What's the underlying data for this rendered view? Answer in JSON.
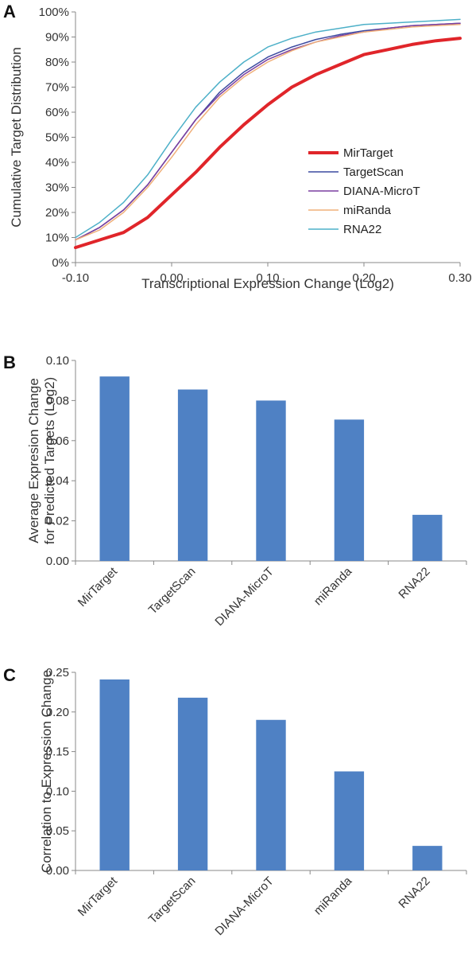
{
  "figure": {
    "panels": [
      "A",
      "B",
      "C"
    ]
  },
  "chart_data": [
    {
      "type": "line",
      "panel": "A",
      "xlabel": "Transcriptional Expression Change (Log2)",
      "ylabel": "Cumulative Target Distribution",
      "xlim": [
        -0.1,
        0.3
      ],
      "ylim": [
        0,
        100
      ],
      "x_ticks": [
        "-0.10",
        "0.00",
        "0.10",
        "0.20",
        "0.30"
      ],
      "y_ticks": [
        "0%",
        "10%",
        "20%",
        "30%",
        "40%",
        "50%",
        "60%",
        "70%",
        "80%",
        "90%",
        "100%"
      ],
      "grid": false,
      "legend_position": "right",
      "x": [
        -0.1,
        -0.075,
        -0.05,
        -0.025,
        0.0,
        0.025,
        0.05,
        0.075,
        0.1,
        0.125,
        0.15,
        0.175,
        0.2,
        0.225,
        0.25,
        0.275,
        0.3
      ],
      "series": [
        {
          "name": "MirTarget",
          "color": "#e0252a",
          "line_width": 4,
          "values": [
            6,
            9,
            12,
            18,
            27,
            36,
            46,
            55,
            63,
            70,
            75,
            79,
            83,
            85,
            87,
            88.5,
            89.5
          ]
        },
        {
          "name": "TargetScan",
          "color": "#3c4aa0",
          "line_width": 1.5,
          "values": [
            9,
            14,
            21,
            31,
            44,
            57,
            68,
            76,
            82,
            86,
            89,
            91,
            92.5,
            93.5,
            94.5,
            95,
            95.5
          ]
        },
        {
          "name": "DIANA-MicroT",
          "color": "#7a3fa0",
          "line_width": 1.5,
          "values": [
            9,
            14,
            21,
            31,
            44,
            57,
            67,
            75,
            81,
            85,
            88,
            90.5,
            92,
            93.5,
            94.5,
            95,
            95.5
          ]
        },
        {
          "name": "miRanda",
          "color": "#f0b07a",
          "line_width": 1.5,
          "values": [
            9,
            13,
            20,
            30,
            42,
            55,
            66,
            74,
            80,
            84.5,
            88,
            90,
            92,
            93,
            94,
            94.5,
            95
          ]
        },
        {
          "name": "RNA22",
          "color": "#4db0c8",
          "line_width": 1.5,
          "values": [
            10,
            16,
            24,
            35,
            49,
            62,
            72,
            80,
            86,
            89.5,
            92,
            93.5,
            95,
            95.5,
            96,
            96.5,
            97
          ]
        }
      ]
    },
    {
      "type": "bar",
      "panel": "B",
      "ylabel": "Average Expresion Change for Predicted Targets (Log2)",
      "ylabel_lines": [
        "Average Expresion Change",
        "for Predicted Targets (Log2)"
      ],
      "categories": [
        "MirTarget",
        "TargetScan",
        "DIANA-MicroT",
        "miRanda",
        "RNA22"
      ],
      "values": [
        0.092,
        0.0855,
        0.08,
        0.0705,
        0.023
      ],
      "ylim": [
        0,
        0.1
      ],
      "y_ticks": [
        "0.00",
        "0.02",
        "0.04",
        "0.06",
        "0.08",
        "0.10"
      ],
      "bar_color": "#4f81c4",
      "grid": false
    },
    {
      "type": "bar",
      "panel": "C",
      "ylabel": "Correlation to Expression Change",
      "categories": [
        "MirTarget",
        "TargetScan",
        "DIANA-MicroT",
        "miRanda",
        "RNA22"
      ],
      "values": [
        0.241,
        0.218,
        0.19,
        0.125,
        0.031
      ],
      "ylim": [
        0,
        0.25
      ],
      "y_ticks": [
        "0.00",
        "0.05",
        "0.10",
        "0.15",
        "0.20",
        "0.25"
      ],
      "bar_color": "#4f81c4",
      "grid": false
    }
  ]
}
